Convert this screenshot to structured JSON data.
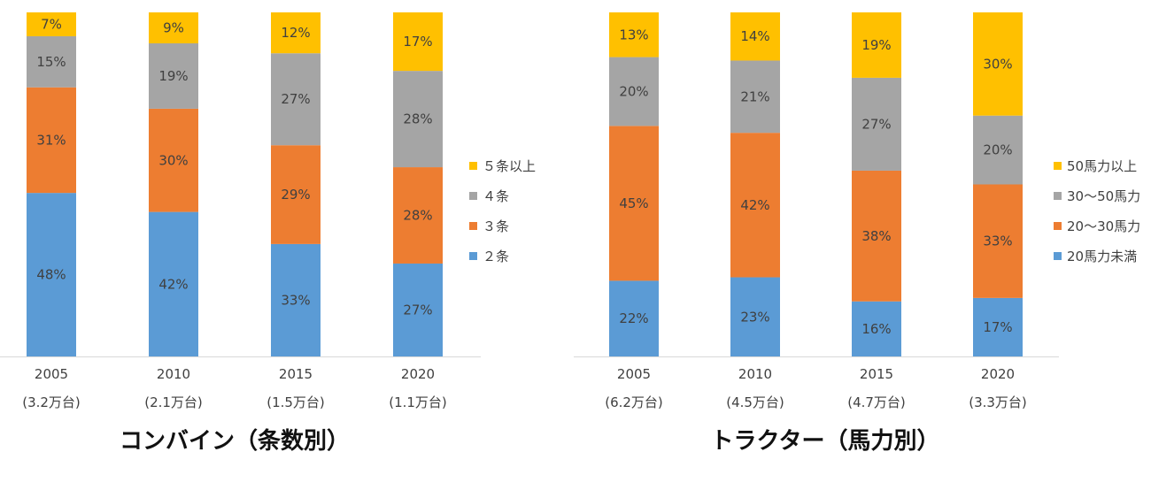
{
  "chart_data": [
    {
      "type": "bar",
      "stacked": true,
      "title": "コンバイン（条数別）",
      "categories": [
        "2005",
        "2010",
        "2015",
        "2020"
      ],
      "category_sublabels": [
        "(3.2万台)",
        "(2.1万台)",
        "(1.5万台)",
        "(1.1万台)"
      ],
      "value_format": "percent",
      "ylim": [
        0,
        100
      ],
      "grid": false,
      "legend_position": "right",
      "series": [
        {
          "name": "２条",
          "color": "#5B9BD5",
          "values": [
            48,
            42,
            33,
            27
          ]
        },
        {
          "name": "３条",
          "color": "#ED7D31",
          "values": [
            31,
            30,
            29,
            28
          ]
        },
        {
          "name": "４条",
          "color": "#A5A5A5",
          "values": [
            15,
            19,
            27,
            28
          ]
        },
        {
          "name": "５条以上",
          "color": "#FFC000",
          "values": [
            7,
            9,
            12,
            17
          ]
        }
      ]
    },
    {
      "type": "bar",
      "stacked": true,
      "title": "トラクター（馬力別）",
      "categories": [
        "2005",
        "2010",
        "2015",
        "2020"
      ],
      "category_sublabels": [
        "(6.2万台)",
        "(4.5万台)",
        "(4.7万台)",
        "(3.3万台)"
      ],
      "value_format": "percent",
      "ylim": [
        0,
        100
      ],
      "grid": false,
      "legend_position": "right",
      "series": [
        {
          "name": "20馬力未満",
          "color": "#5B9BD5",
          "values": [
            22,
            23,
            16,
            17
          ]
        },
        {
          "name": "20～30馬力",
          "color": "#ED7D31",
          "values": [
            45,
            42,
            38,
            33
          ]
        },
        {
          "name": "30～50馬力",
          "color": "#A5A5A5",
          "values": [
            20,
            21,
            27,
            20
          ]
        },
        {
          "name": "50馬力以上",
          "color": "#FFC000",
          "values": [
            13,
            14,
            19,
            30
          ]
        }
      ]
    }
  ]
}
